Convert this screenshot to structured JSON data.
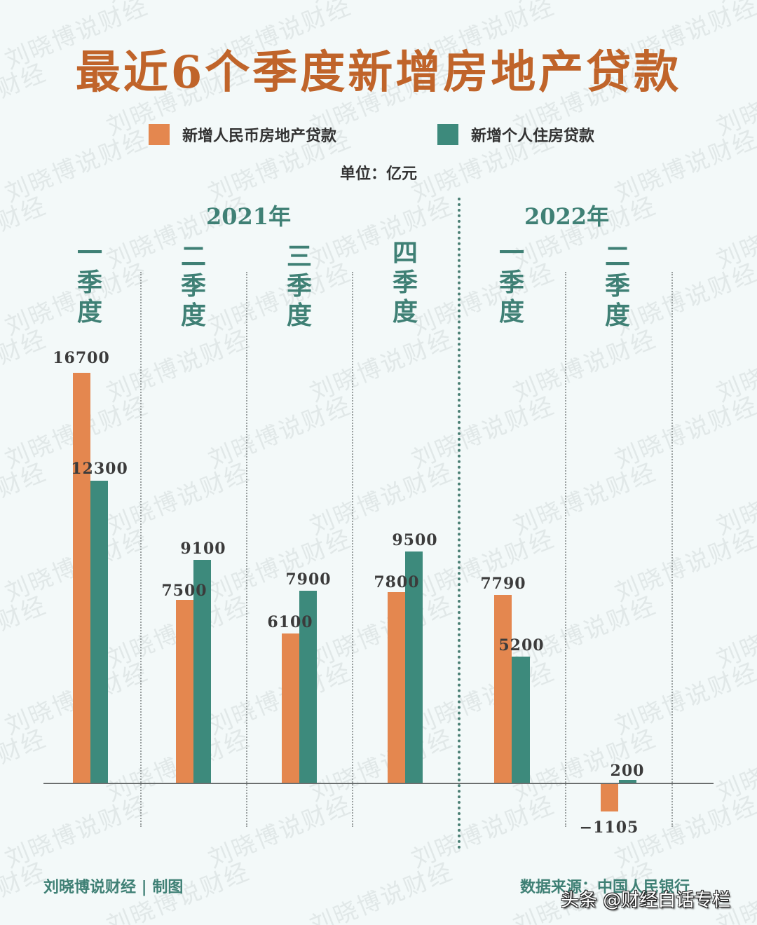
{
  "title": "最近6个季度新增房地产贷款",
  "legend": [
    {
      "label": "新增人民币房地产贷款",
      "color": "#e4874f"
    },
    {
      "label": "新增个人住房贷款",
      "color": "#3d8a7c"
    }
  ],
  "unit": "单位：亿元",
  "years": [
    {
      "label": "2021年"
    },
    {
      "label": "2022年"
    }
  ],
  "quarters": [
    {
      "chars": [
        "一",
        "季",
        "度"
      ]
    },
    {
      "chars": [
        "二",
        "季",
        "度"
      ]
    },
    {
      "chars": [
        "三",
        "季",
        "度"
      ]
    },
    {
      "chars": [
        "四",
        "季",
        "度"
      ]
    },
    {
      "chars": [
        "一",
        "季",
        "度"
      ]
    },
    {
      "chars": [
        "二",
        "季",
        "度"
      ]
    }
  ],
  "values": {
    "real_estate": [
      "16700",
      "7500",
      "6100",
      "7800",
      "7790",
      "−1105"
    ],
    "housing": [
      "12300",
      "9100",
      "7900",
      "9500",
      "5200",
      "200"
    ]
  },
  "footer": {
    "credit": "刘晓博说财经 | 制图",
    "source": "数据来源：中国人民银行",
    "overlay": "头条 @财经白话专栏"
  },
  "watermark": "刘晓博说财经",
  "chart_data": {
    "type": "bar",
    "title": "最近6个季度新增房地产贷款",
    "categories": [
      "2021年一季度",
      "2021年二季度",
      "2021年三季度",
      "2021年四季度",
      "2022年一季度",
      "2022年二季度"
    ],
    "series": [
      {
        "name": "新增人民币房地产贷款",
        "color": "#e4874f",
        "values": [
          16700,
          7500,
          6100,
          7800,
          7790,
          -1105
        ]
      },
      {
        "name": "新增个人住房贷款",
        "color": "#3d8a7c",
        "values": [
          12300,
          9100,
          7900,
          9500,
          5200,
          200
        ]
      }
    ],
    "xlabel": "",
    "ylabel": "单位：亿元",
    "ylim": [
      -1105,
      16700
    ],
    "grid": false,
    "legend_position": "top",
    "annotations": [
      "2021年",
      "2022年",
      "数据来源：中国人民银行",
      "刘晓博说财经 | 制图"
    ]
  }
}
